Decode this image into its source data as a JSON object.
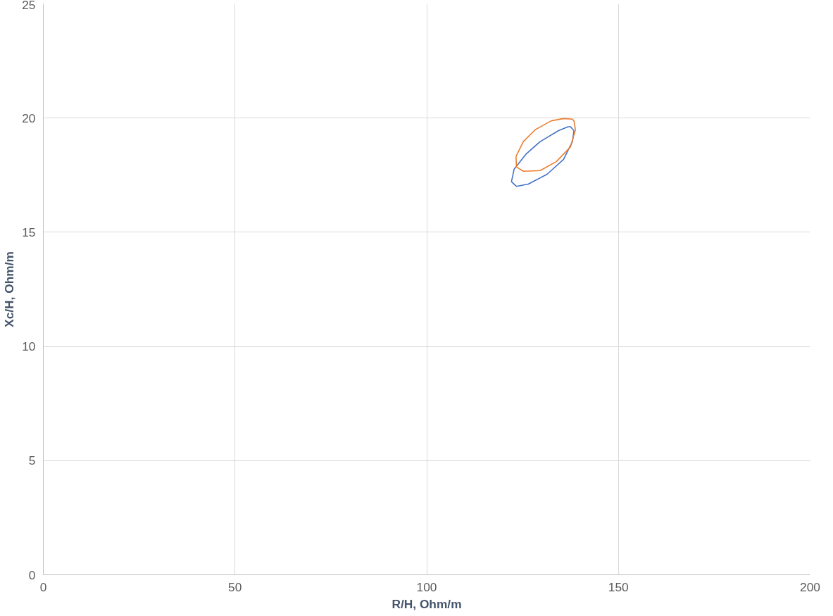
{
  "chart_data": {
    "type": "line",
    "xlabel": "R/H, Ohm/m",
    "ylabel": "Xc/H, Ohm/m",
    "xlim": [
      0,
      200
    ],
    "xticks": [
      0,
      50,
      100,
      150,
      200
    ],
    "ylim": [
      0,
      25
    ],
    "yticks": [
      0,
      5,
      10,
      15,
      20,
      25
    ],
    "grid": true,
    "line_style": "solid",
    "marker": "none",
    "series": [
      {
        "color": "#4472c4",
        "x": [
          122.1,
          122.8,
          125.9,
          129.6,
          134.4,
          136.9,
          137.5,
          138.4
        ],
        "values": [
          17.21,
          17.76,
          18.42,
          18.97,
          19.45,
          19.62,
          19.62,
          19.45
        ]
      },
      {
        "color": "#4472c4",
        "x": [
          122.1,
          123.4,
          126.5,
          131.4,
          135.7,
          138.0,
          138.4
        ],
        "values": [
          17.21,
          17.01,
          17.11,
          17.54,
          18.19,
          18.97,
          19.45
        ]
      },
      {
        "color": "#ed7d31",
        "x": [
          123.3,
          125.2,
          128.3,
          132.5,
          135.7,
          138.0,
          138.4,
          138.8
        ],
        "values": [
          18.32,
          18.97,
          19.49,
          19.88,
          19.98,
          19.95,
          19.88,
          19.49
        ]
      },
      {
        "color": "#ed7d31",
        "x": [
          123.3,
          123.4,
          125.2,
          129.6,
          133.8,
          137.5,
          138.8
        ],
        "values": [
          18.32,
          17.86,
          17.67,
          17.7,
          18.09,
          18.74,
          19.49
        ]
      }
    ]
  }
}
